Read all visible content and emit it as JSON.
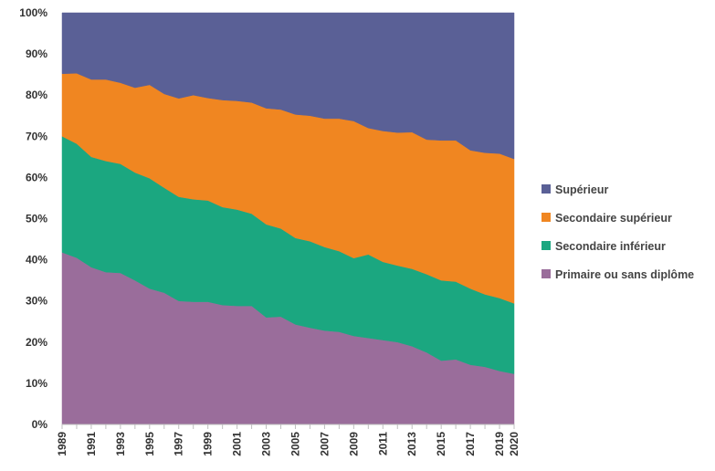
{
  "chart_data": {
    "type": "area",
    "stacked": "percent",
    "title": "",
    "xlabel": "",
    "ylabel": "",
    "ylim": [
      0,
      100
    ],
    "y_ticks": [
      "0%",
      "10%",
      "20%",
      "30%",
      "40%",
      "50%",
      "60%",
      "70%",
      "80%",
      "90%",
      "100%"
    ],
    "x_ticks": [
      "1989",
      "1991",
      "1993",
      "1995",
      "1997",
      "1999",
      "2001",
      "2003",
      "2005",
      "2007",
      "2009",
      "2011",
      "2013",
      "2015",
      "2017",
      "2019",
      "2020"
    ],
    "grid": false,
    "legend_position": "right",
    "x": [
      1989,
      1990,
      1991,
      1992,
      1993,
      1994,
      1995,
      1996,
      1997,
      1998,
      1999,
      2000,
      2001,
      2002,
      2003,
      2004,
      2005,
      2006,
      2007,
      2008,
      2009,
      2010,
      2011,
      2012,
      2013,
      2014,
      2015,
      2016,
      2017,
      2018,
      2019,
      2020
    ],
    "series": [
      {
        "name": "Primaire ou sans diplôme",
        "color": "#9a6d9b",
        "values": [
          41.8,
          40.5,
          38.2,
          37.0,
          36.8,
          35.0,
          33.0,
          32.0,
          30.0,
          29.8,
          29.8,
          29.0,
          28.8,
          28.8,
          26.0,
          26.2,
          24.3,
          23.5,
          22.8,
          22.5,
          21.5,
          21.0,
          20.5,
          20.0,
          19.0,
          17.5,
          15.5,
          15.8,
          14.5,
          14.0,
          13.0,
          12.3
        ]
      },
      {
        "name": "Secondaire inférieur",
        "color": "#1ba780",
        "values": [
          28.2,
          27.7,
          26.8,
          27.0,
          26.5,
          26.2,
          26.8,
          25.5,
          25.3,
          24.9,
          24.6,
          23.8,
          23.4,
          22.4,
          22.6,
          21.4,
          21.0,
          21.0,
          20.3,
          19.6,
          18.9,
          20.3,
          19.0,
          18.6,
          18.8,
          19.0,
          19.5,
          18.9,
          18.5,
          17.6,
          17.7,
          17.1
        ]
      },
      {
        "name": "Secondaire supérieur",
        "color": "#f08621",
        "values": [
          15.2,
          17.1,
          18.8,
          19.8,
          19.7,
          20.6,
          22.7,
          22.8,
          23.9,
          25.3,
          24.9,
          26.0,
          26.4,
          27.0,
          28.2,
          28.9,
          30.0,
          30.5,
          31.2,
          32.2,
          33.3,
          30.7,
          31.8,
          32.3,
          33.2,
          32.7,
          34.0,
          34.3,
          33.6,
          34.4,
          35.1,
          35.1
        ]
      },
      {
        "name": "Supérieur",
        "color": "#5a6096",
        "values": [
          14.8,
          14.7,
          16.2,
          16.2,
          17.0,
          18.2,
          17.5,
          19.7,
          20.8,
          20.0,
          20.7,
          21.2,
          21.4,
          21.8,
          23.2,
          23.5,
          24.7,
          25.0,
          25.7,
          25.7,
          26.3,
          28.0,
          28.7,
          29.1,
          29.0,
          30.8,
          31.0,
          31.0,
          33.4,
          34.0,
          34.2,
          35.5
        ]
      }
    ],
    "legend_order": [
      "Supérieur",
      "Secondaire supérieur",
      "Secondaire inférieur",
      "Primaire ou sans diplôme"
    ]
  }
}
